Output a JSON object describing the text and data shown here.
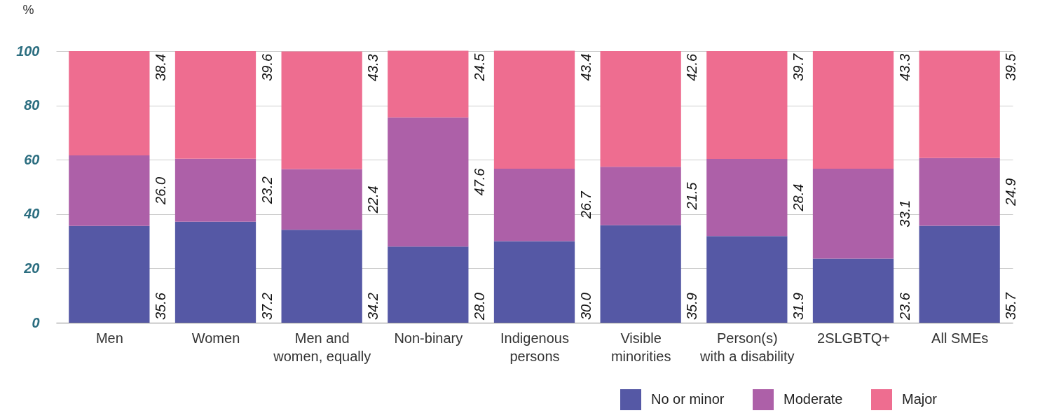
{
  "chart_data": {
    "type": "bar",
    "stacked": true,
    "ylabel": "%",
    "categories": [
      "Men",
      "Women",
      "Men and\nwomen, equally",
      "Non-binary",
      "Indigenous\npersons",
      "Visible\nminorities",
      "Person(s)\nwith a disability",
      "2SLGBTQ+",
      "All SMEs"
    ],
    "series": [
      {
        "name": "No or minor",
        "color": "#5558a5",
        "values": [
          35.6,
          37.2,
          34.2,
          28.0,
          30.0,
          35.9,
          31.9,
          23.6,
          35.7
        ],
        "value_labels": [
          "35.6",
          "37.2",
          "34.2",
          "28.0",
          "30.0",
          "35.9",
          "31.9",
          "23.6",
          "35.7"
        ]
      },
      {
        "name": "Moderate",
        "color": "#ad60a8",
        "values": [
          26.0,
          23.2,
          22.4,
          47.6,
          26.7,
          21.5,
          28.4,
          33.1,
          24.9
        ],
        "value_labels": [
          "26.0",
          "23.2",
          "22.4",
          "47.6",
          "26.7",
          "21.5",
          "28.4",
          "33.1",
          "24.9"
        ]
      },
      {
        "name": "Major",
        "color": "#ee6d90",
        "values": [
          38.4,
          39.6,
          43.3,
          24.5,
          43.4,
          42.6,
          39.7,
          43.3,
          39.5
        ],
        "value_labels": [
          "38.4",
          "39.6",
          "43.3",
          "24.5",
          "43.4",
          "42.6",
          "39.7",
          "43.3",
          "39.5"
        ]
      }
    ],
    "ylim": [
      0,
      100
    ],
    "yticks": [
      0,
      20,
      40,
      60,
      80,
      100
    ],
    "grid": "y",
    "legend": "bottom right"
  }
}
